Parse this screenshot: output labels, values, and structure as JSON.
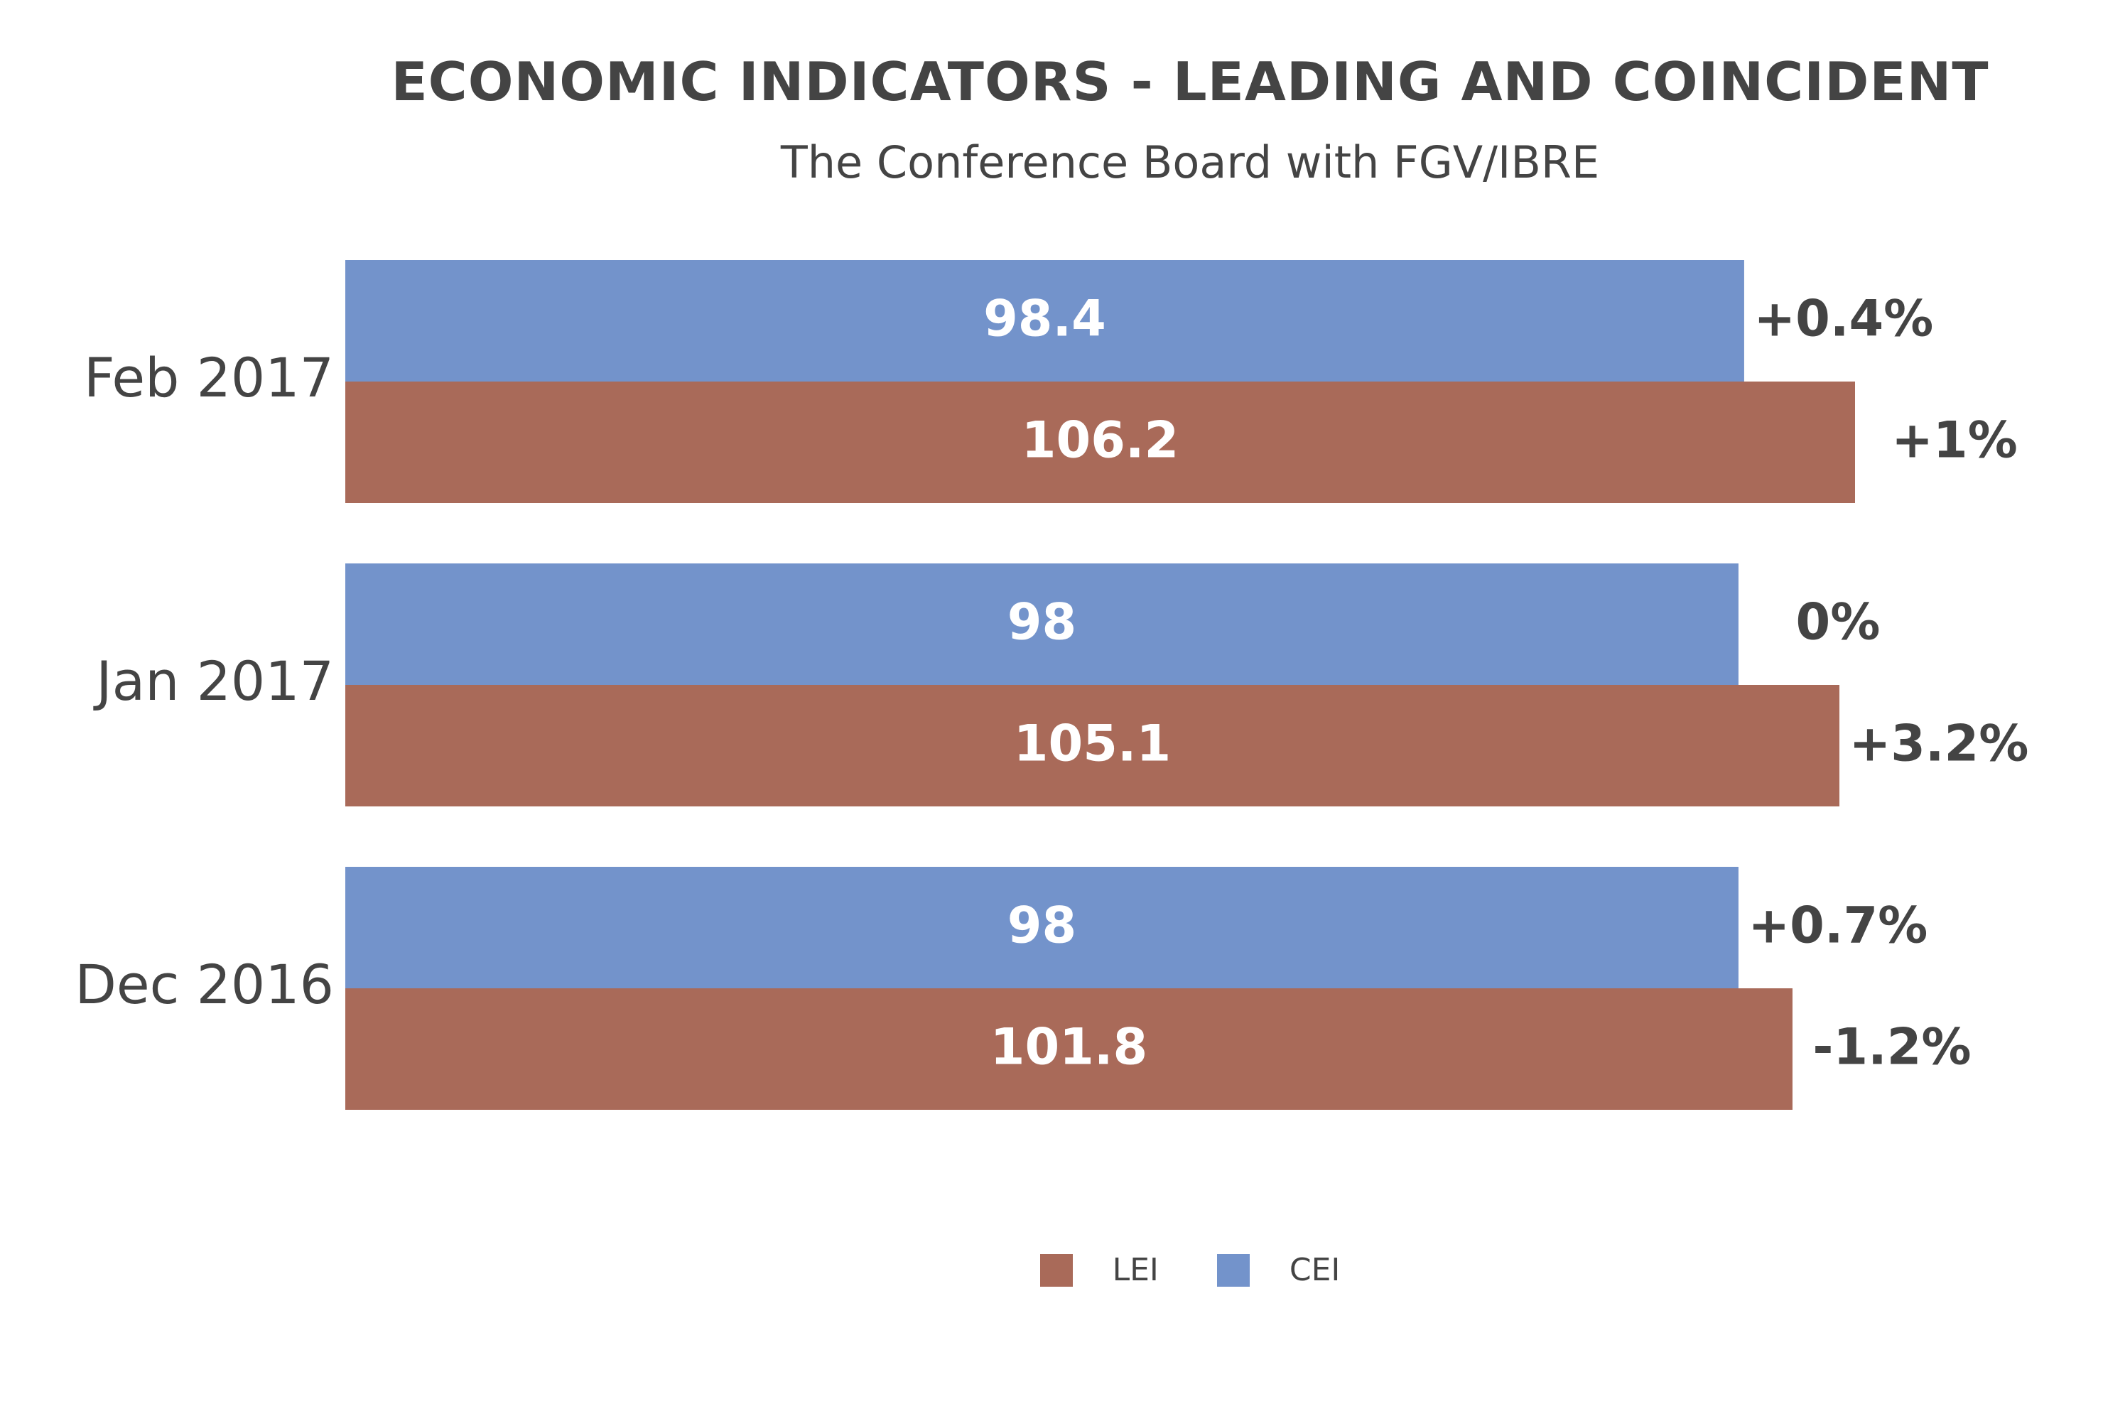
{
  "chart_data": {
    "type": "bar",
    "orientation": "horizontal",
    "title": "ECONOMIC INDICATORS - LEADING AND COINCIDENT",
    "subtitle": "The Conference Board with FGV/IBRE",
    "categories": [
      "Feb 2017",
      "Jan 2017",
      "Dec 2016"
    ],
    "series": [
      {
        "name": "CEI",
        "color": "#7393cb",
        "values": [
          98.4,
          98,
          98
        ],
        "value_labels": [
          "98.4",
          "98",
          "98"
        ],
        "change_labels": [
          "+0.4%",
          "0%",
          "+0.7%"
        ]
      },
      {
        "name": "LEI",
        "color": "#a96a59",
        "values": [
          106.2,
          105.1,
          101.8
        ],
        "value_labels": [
          "106.2",
          "105.1",
          "101.8"
        ],
        "change_labels": [
          "+1%",
          "+3.2%",
          "-1.2%"
        ]
      }
    ],
    "xlim": [
      0,
      106.2
    ],
    "grid": false,
    "axes_visible": false,
    "legend": {
      "placement": "bottom-center",
      "entries": [
        {
          "label": "LEI",
          "color": "#a96a59"
        },
        {
          "label": "CEI",
          "color": "#7393cb"
        }
      ]
    }
  }
}
